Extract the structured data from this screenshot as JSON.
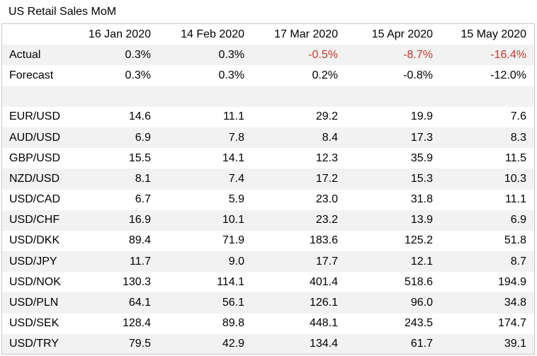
{
  "title": "US Retail Sales MoM",
  "colors": {
    "negative": "#c0392b",
    "stripe": "#f2f2f2"
  },
  "columns": [
    "16 Jan 2020",
    "14 Feb 2020",
    "17 Mar 2020",
    "15 Apr 2020",
    "15 May 2020"
  ],
  "actual": {
    "label": "Actual",
    "values": [
      "0.3%",
      "0.3%",
      "-0.5%",
      "-8.7%",
      "-16.4%"
    ],
    "negative": [
      false,
      false,
      true,
      true,
      true
    ]
  },
  "forecast": {
    "label": "Forecast",
    "values": [
      "0.3%",
      "0.3%",
      "0.2%",
      "-0.8%",
      "-12.0%"
    ]
  },
  "pairs": [
    {
      "label": "EUR/USD",
      "values": [
        "14.6",
        "11.1",
        "29.2",
        "19.9",
        "7.6"
      ]
    },
    {
      "label": "AUD/USD",
      "values": [
        "6.9",
        "7.8",
        "8.4",
        "17.3",
        "8.3"
      ]
    },
    {
      "label": "GBP/USD",
      "values": [
        "15.5",
        "14.1",
        "12.3",
        "35.9",
        "11.5"
      ]
    },
    {
      "label": "NZD/USD",
      "values": [
        "8.1",
        "7.4",
        "17.2",
        "15.3",
        "10.3"
      ]
    },
    {
      "label": "USD/CAD",
      "values": [
        "6.7",
        "5.9",
        "23.0",
        "31.8",
        "11.1"
      ]
    },
    {
      "label": "USD/CHF",
      "values": [
        "16.9",
        "10.1",
        "23.2",
        "13.9",
        "6.9"
      ]
    },
    {
      "label": "USD/DKK",
      "values": [
        "89.4",
        "71.9",
        "183.6",
        "125.2",
        "51.8"
      ]
    },
    {
      "label": "USD/JPY",
      "values": [
        "11.7",
        "9.0",
        "17.7",
        "12.1",
        "8.7"
      ]
    },
    {
      "label": "USD/NOK",
      "values": [
        "130.3",
        "114.1",
        "401.4",
        "518.6",
        "194.9"
      ]
    },
    {
      "label": "USD/PLN",
      "values": [
        "64.1",
        "56.1",
        "126.1",
        "96.0",
        "34.8"
      ]
    },
    {
      "label": "USD/SEK",
      "values": [
        "128.4",
        "89.8",
        "448.1",
        "243.5",
        "174.7"
      ]
    },
    {
      "label": "USD/TRY",
      "values": [
        "79.5",
        "42.9",
        "134.4",
        "61.7",
        "39.1"
      ]
    }
  ]
}
